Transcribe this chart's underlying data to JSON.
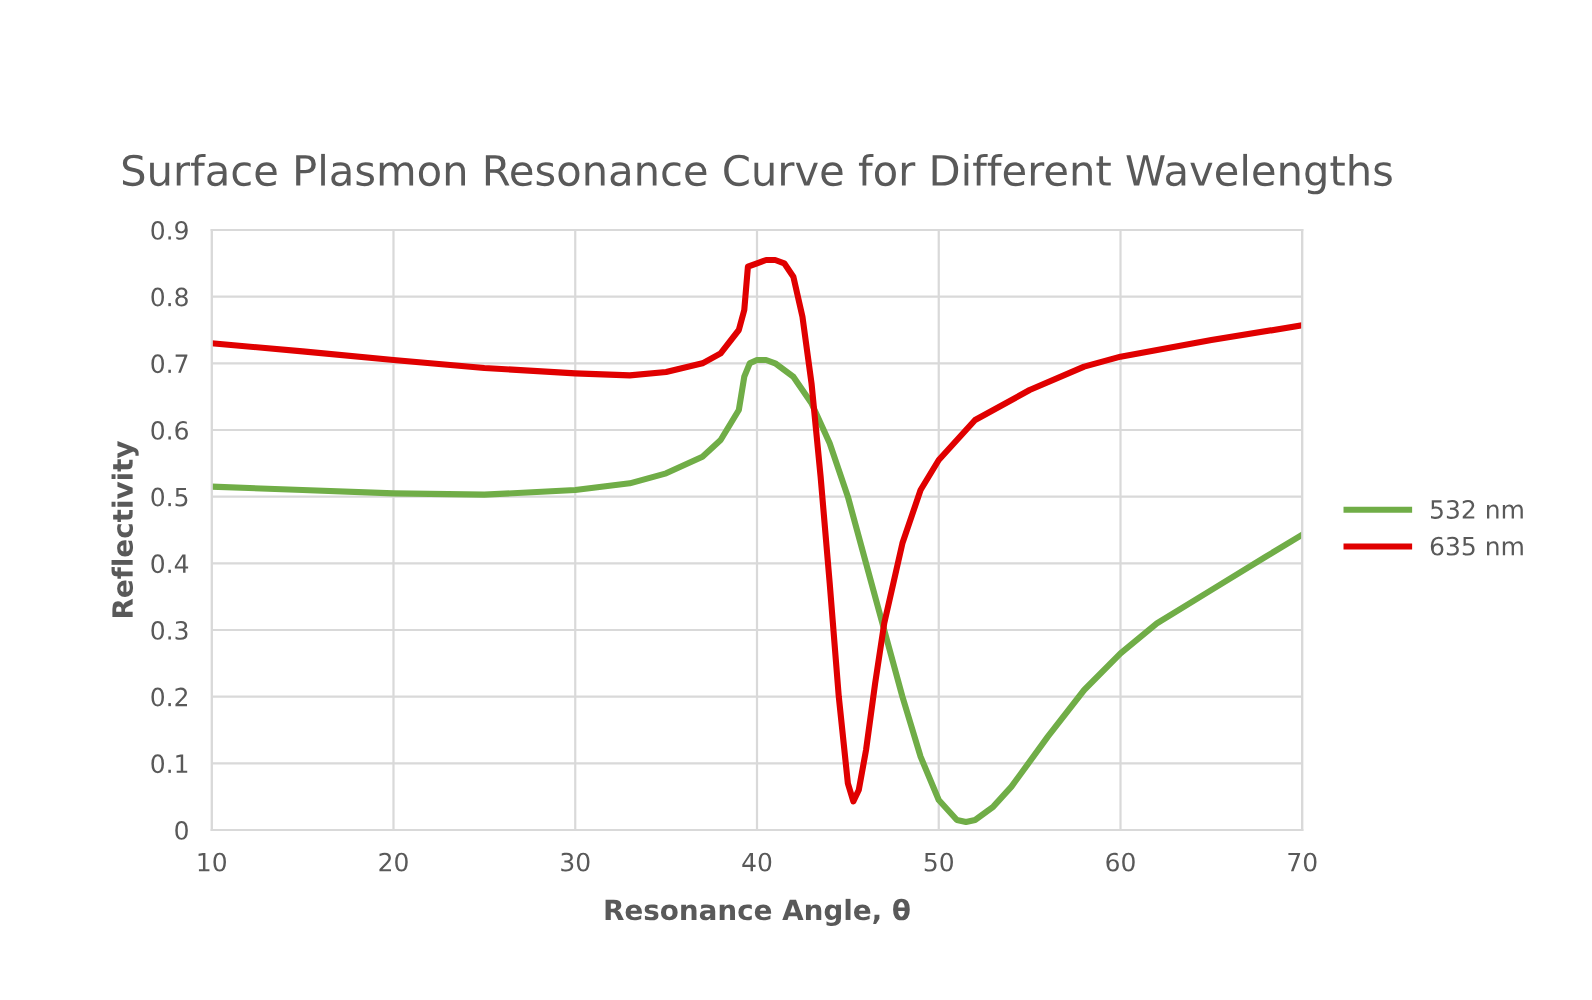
{
  "chart_data": {
    "type": "line",
    "title": "Surface Plasmon Resonance Curve for Different Wavelengths",
    "xlabel": "Resonance Angle, θ",
    "ylabel": "Reflectivity",
    "xlim": [
      10,
      70
    ],
    "xticks": [
      10,
      20,
      30,
      40,
      50,
      60,
      70
    ],
    "ylim": [
      0,
      0.9
    ],
    "yticks": [
      0,
      0.1,
      0.2,
      0.3,
      0.4,
      0.5,
      0.6,
      0.7,
      0.8,
      0.9
    ],
    "grid": true,
    "legend": "right",
    "marker": "none",
    "line_style": "solid",
    "series": [
      {
        "name": "532 nm",
        "color": "#70ad47",
        "x": [
          10,
          15,
          20,
          25,
          30,
          33,
          35,
          37,
          38,
          39,
          39.3,
          39.6,
          40,
          40.5,
          41,
          42,
          43,
          44,
          45,
          46,
          47,
          48,
          49,
          50,
          51,
          51.5,
          52,
          53,
          54,
          56,
          58,
          60,
          62,
          65,
          68,
          70
        ],
        "values": [
          0.515,
          0.51,
          0.505,
          0.503,
          0.51,
          0.52,
          0.535,
          0.56,
          0.585,
          0.63,
          0.68,
          0.7,
          0.705,
          0.705,
          0.7,
          0.68,
          0.64,
          0.58,
          0.5,
          0.4,
          0.3,
          0.2,
          0.11,
          0.045,
          0.015,
          0.012,
          0.015,
          0.035,
          0.065,
          0.14,
          0.21,
          0.265,
          0.31,
          0.36,
          0.41,
          0.443
        ]
      },
      {
        "name": "635 nm",
        "color": "#e00000",
        "x": [
          10,
          15,
          20,
          25,
          30,
          33,
          35,
          37,
          38,
          39,
          39.3,
          39.5,
          40,
          40.5,
          41,
          41.5,
          42,
          42.5,
          43,
          43.5,
          44,
          44.5,
          45,
          45.3,
          45.6,
          46,
          46.5,
          47,
          48,
          49,
          50,
          52,
          55,
          58,
          60,
          65,
          70
        ],
        "values": [
          0.73,
          0.718,
          0.705,
          0.693,
          0.685,
          0.682,
          0.687,
          0.7,
          0.715,
          0.75,
          0.78,
          0.845,
          0.85,
          0.855,
          0.855,
          0.85,
          0.83,
          0.77,
          0.67,
          0.53,
          0.37,
          0.2,
          0.07,
          0.043,
          0.06,
          0.12,
          0.22,
          0.31,
          0.43,
          0.51,
          0.555,
          0.615,
          0.66,
          0.695,
          0.71,
          0.735,
          0.757
        ]
      }
    ]
  }
}
